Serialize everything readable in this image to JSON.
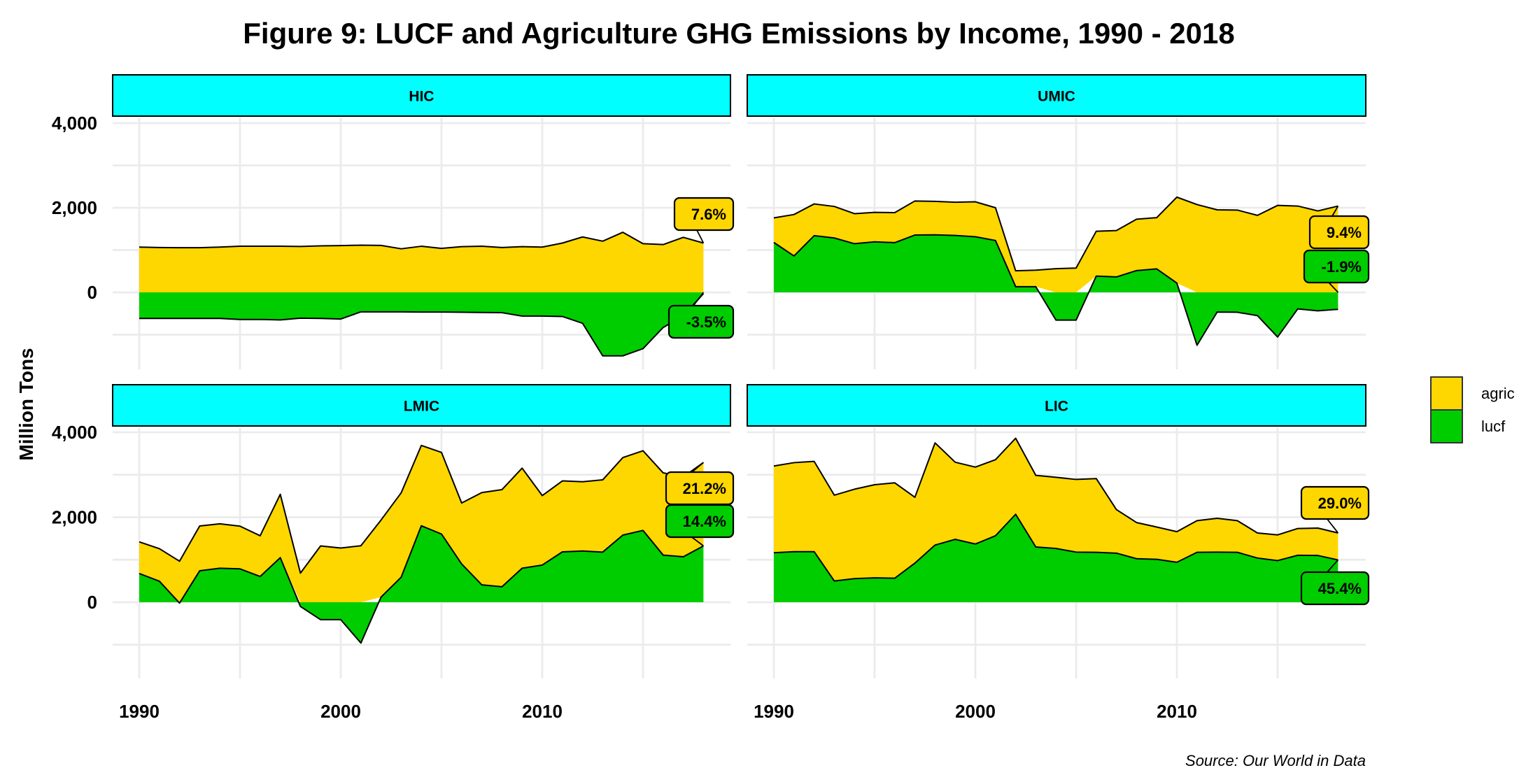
{
  "chart_data": {
    "type": "area",
    "title": "Figure 9: LUCF and Agriculture GHG Emissions by Income, 1990 - 2018",
    "ylabel": "Million Tons",
    "xlabel": "",
    "caption": "Source: Our World in Data",
    "ylim": [
      -1850,
      4000
    ],
    "xlim": [
      1988.7,
      2019.3
    ],
    "y_ticks": [
      4000,
      2000,
      0
    ],
    "y_tick_labels": [
      "4,000",
      "2,000",
      "0"
    ],
    "y_minor_ticks": [
      3000,
      1000,
      -1000
    ],
    "x_ticks": [
      1990,
      2000,
      2010
    ],
    "x_tick_labels": [
      "1990",
      "2000",
      "2010"
    ],
    "x_minor_ticks": [
      1995,
      2005,
      2015
    ],
    "grid": true,
    "stacking": "stacked (lucf bottom, agric on top of positive lucf)",
    "legend": {
      "position": "right",
      "entries": [
        {
          "name": "agric",
          "color": "#ffd700"
        },
        {
          "name": "lucf",
          "color": "#00cd00"
        }
      ]
    },
    "x": [
      1990,
      1991,
      1992,
      1993,
      1994,
      1995,
      1996,
      1997,
      1998,
      1999,
      2000,
      2001,
      2002,
      2003,
      2004,
      2005,
      2006,
      2007,
      2008,
      2009,
      2010,
      2011,
      2012,
      2013,
      2014,
      2015,
      2016,
      2017,
      2018
    ],
    "panels": [
      {
        "name": "HIC",
        "series": [
          {
            "name": "agric",
            "values": [
              1070,
              1060,
              1055,
              1055,
              1070,
              1090,
              1090,
              1090,
              1085,
              1100,
              1105,
              1115,
              1110,
              1030,
              1090,
              1040,
              1080,
              1090,
              1060,
              1080,
              1070,
              1165,
              1310,
              1210,
              1420,
              1150,
              1130,
              1300,
              1165
            ]
          },
          {
            "name": "lucf",
            "values": [
              -615,
              -615,
              -615,
              -615,
              -615,
              -640,
              -640,
              -650,
              -610,
              -615,
              -630,
              -460,
              -460,
              -460,
              -465,
              -465,
              -470,
              -475,
              -480,
              -560,
              -560,
              -570,
              -730,
              -1500,
              -1500,
              -1330,
              -830,
              -550,
              -30
            ]
          }
        ],
        "labels": {
          "agric": "7.6%",
          "lucf": "-3.5%"
        }
      },
      {
        "name": "UMIC",
        "series": [
          {
            "name": "agric",
            "values": [
              580,
              980,
              750,
              745,
              710,
              695,
              710,
              805,
              790,
              785,
              825,
              775,
              375,
              390,
              560,
              575,
              1060,
              1095,
              1215,
              1210,
              2030,
              2075,
              1950,
              1945,
              1820,
              2055,
              2040,
              1925,
              2040
            ]
          },
          {
            "name": "lucf",
            "values": [
              1180,
              860,
              1340,
              1285,
              1150,
              1195,
              1175,
              1355,
              1360,
              1345,
              1315,
              1225,
              135,
              135,
              -655,
              -655,
              385,
              365,
              515,
              555,
              220,
              -1250,
              -465,
              -470,
              -550,
              -1055,
              -390,
              -435,
              -400
            ]
          }
        ],
        "labels": {
          "agric": "9.4%",
          "lucf": "-1.9%"
        }
      },
      {
        "name": "LMIC",
        "series": [
          {
            "name": "agric",
            "values": [
              745,
              765,
              965,
              1055,
              1045,
              1005,
              960,
              1490,
              685,
              1325,
              1275,
              1330,
              1815,
              1985,
              1890,
              1920,
              1435,
              2170,
              2285,
              2355,
              1635,
              1670,
              1630,
              1700,
              1825,
              1875,
              1935,
              1880,
              1965
            ]
          },
          {
            "name": "lucf",
            "values": [
              675,
              495,
              -20,
              740,
              800,
              785,
              605,
              1050,
              -100,
              -410,
              -410,
              -960,
              120,
              590,
              1800,
              1605,
              900,
              410,
              365,
              800,
              875,
              1185,
              1205,
              1180,
              1580,
              1690,
              1110,
              1070,
              1325
            ]
          }
        ],
        "labels": {
          "agric": "21.2%",
          "lucf": "14.4%"
        }
      },
      {
        "name": "LIC",
        "series": [
          {
            "name": "agric",
            "values": [
              2040,
              2095,
              2125,
              2020,
              2105,
              2190,
              2245,
              1550,
              2405,
              1815,
              1810,
              1790,
              1790,
              1685,
              1675,
              1710,
              1735,
              1025,
              850,
              760,
              720,
              745,
              795,
              745,
              590,
              605,
              630,
              645,
              635
            ]
          },
          {
            "name": "lucf",
            "values": [
              1165,
              1190,
              1190,
              500,
              555,
              575,
              565,
              920,
              1345,
              1480,
              1370,
              1565,
              2070,
              1300,
              1265,
              1180,
              1175,
              1155,
              1025,
              1010,
              940,
              1175,
              1180,
              1175,
              1040,
              980,
              1105,
              1100,
              995
            ]
          }
        ],
        "labels": {
          "agric": "29.0%",
          "lucf": "45.4%"
        }
      }
    ]
  }
}
